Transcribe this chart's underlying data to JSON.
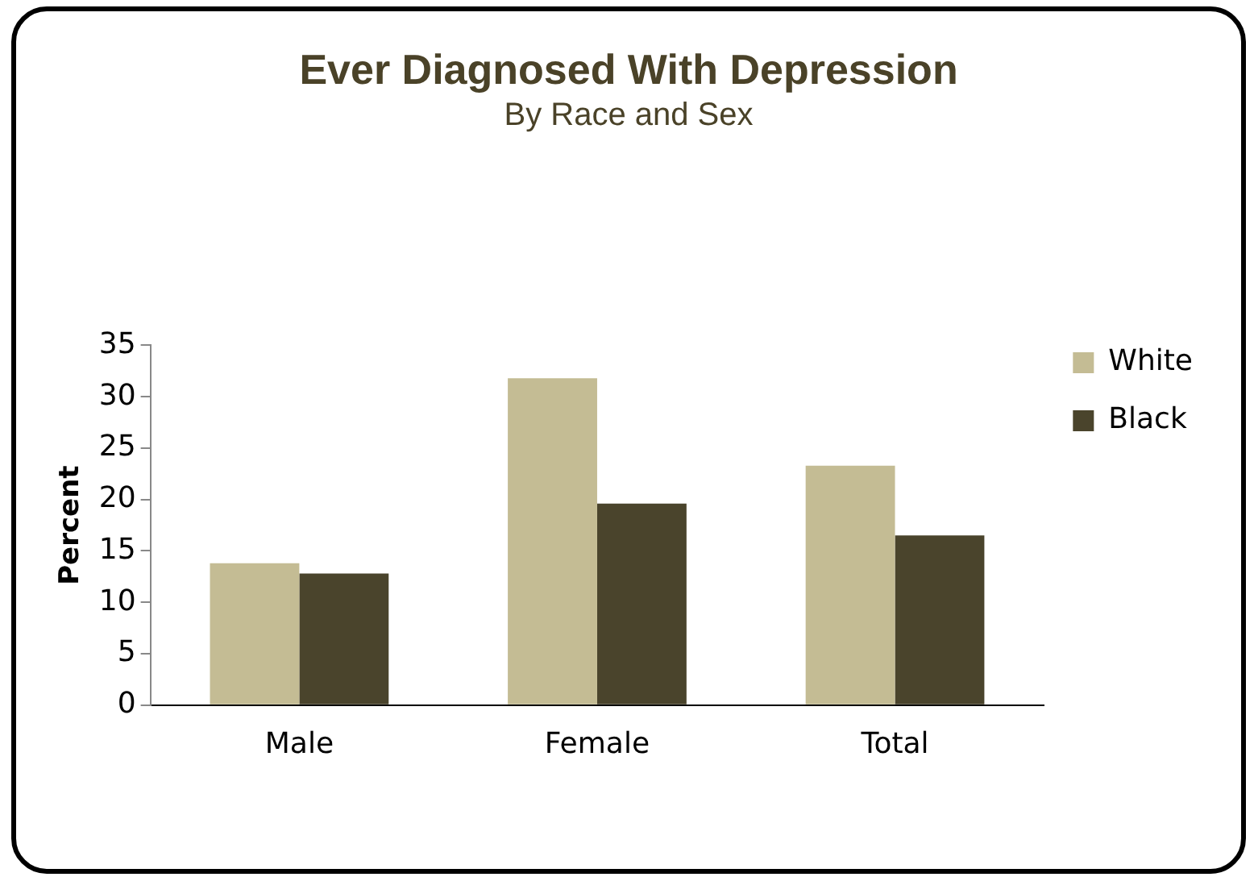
{
  "chart_data": {
    "type": "bar",
    "title": "Ever Diagnosed With Depression",
    "subtitle": "By Race and Sex",
    "ylabel": "Percent",
    "categories": [
      "Male",
      "Female",
      "Total"
    ],
    "series": [
      {
        "name": "White",
        "color": "#c4bc94",
        "values": [
          13.8,
          31.8,
          23.3
        ]
      },
      {
        "name": "Black",
        "color": "#4a442c",
        "values": [
          12.8,
          19.6,
          16.5
        ]
      }
    ],
    "ylim": [
      0,
      35
    ],
    "yticks": [
      0,
      5,
      10,
      15,
      20,
      25,
      30,
      35
    ],
    "grid": false,
    "legend": "right"
  }
}
